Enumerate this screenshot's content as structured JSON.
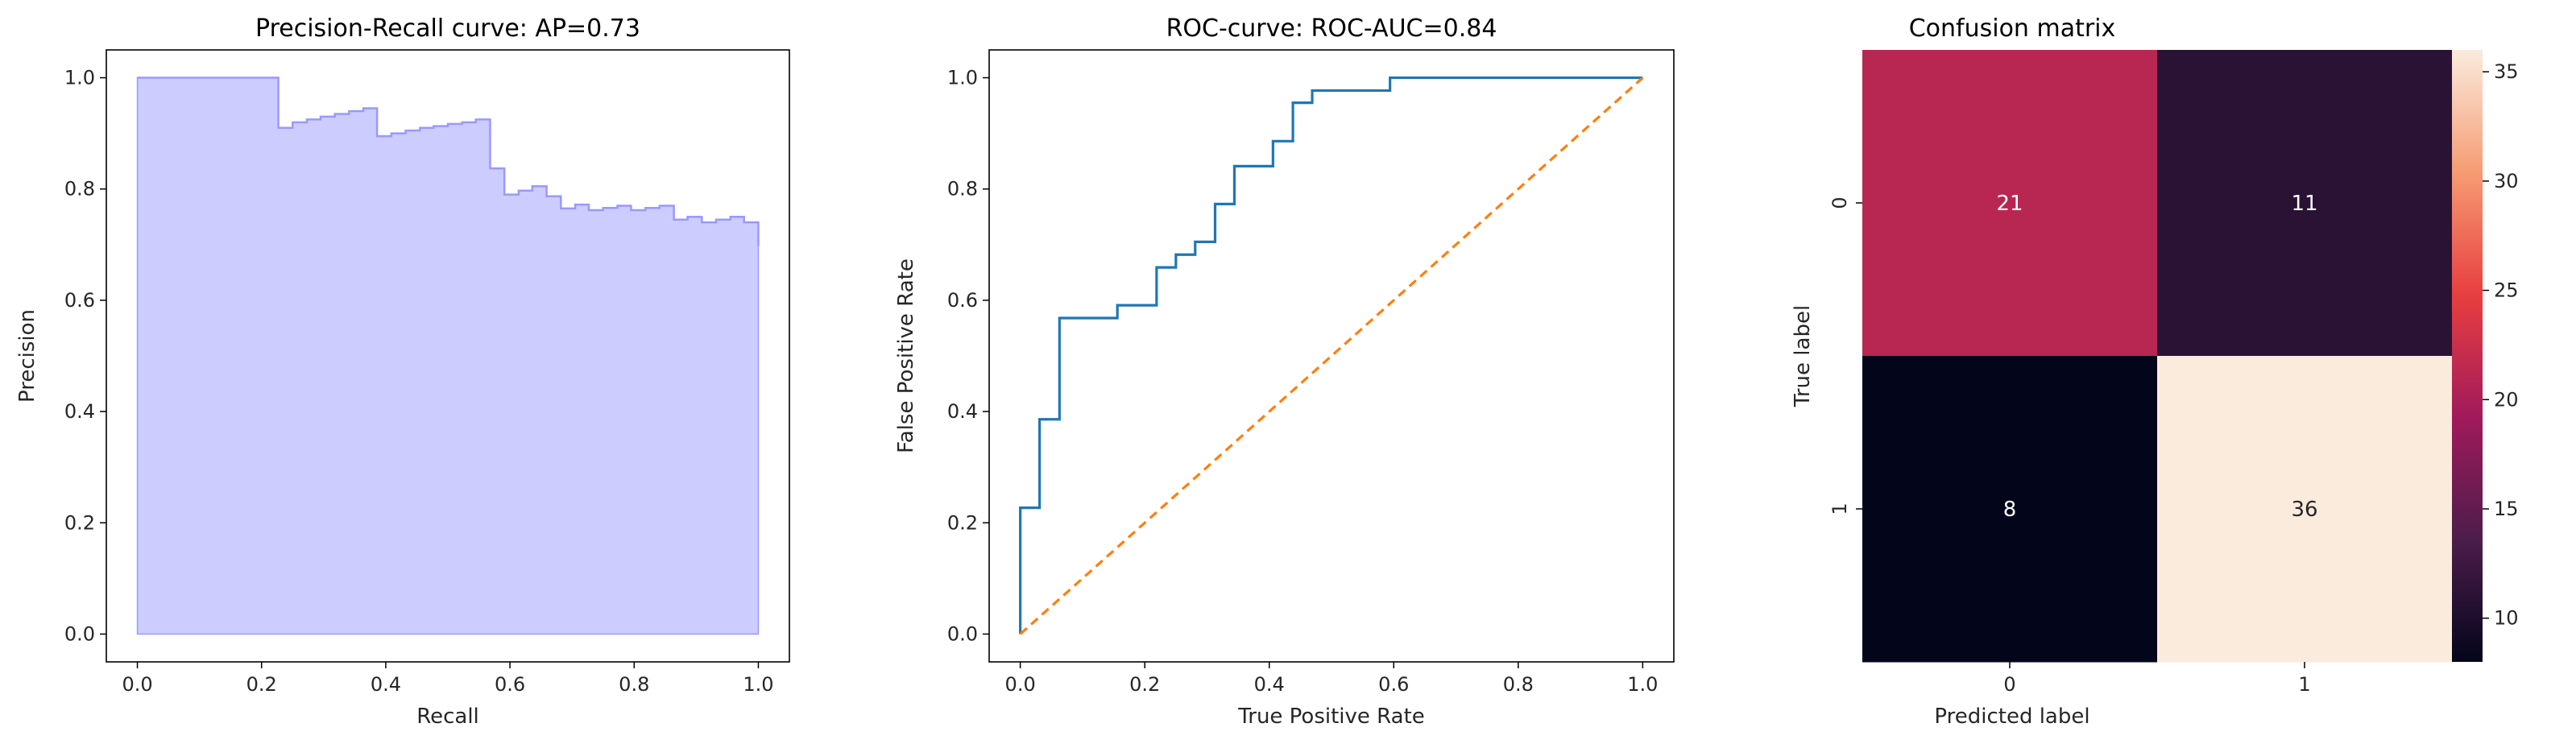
{
  "chart_data": [
    {
      "type": "area",
      "title": "Precision-Recall curve: AP=0.73",
      "xlabel": "Recall",
      "ylabel": "Precision",
      "xlim": [
        -0.05,
        1.05
      ],
      "ylim": [
        -0.05,
        1.05
      ],
      "xticks": [
        0.0,
        0.2,
        0.4,
        0.6,
        0.8,
        1.0
      ],
      "yticks": [
        0.0,
        0.2,
        0.4,
        0.6,
        0.8,
        1.0
      ],
      "tick_labels_x": [
        "0.0",
        "0.2",
        "0.4",
        "0.6",
        "0.8",
        "1.0"
      ],
      "tick_labels_y": [
        "0.0",
        "0.2",
        "0.4",
        "0.6",
        "0.8",
        "1.0"
      ],
      "step": "post",
      "fill_color": "#ccccff",
      "line_color": "#9999ff",
      "x": [
        0.0,
        0.227,
        0.25,
        0.273,
        0.295,
        0.318,
        0.341,
        0.364,
        0.386,
        0.409,
        0.432,
        0.455,
        0.477,
        0.5,
        0.523,
        0.545,
        0.568,
        0.591,
        0.614,
        0.636,
        0.659,
        0.682,
        0.705,
        0.727,
        0.75,
        0.773,
        0.795,
        0.818,
        0.841,
        0.864,
        0.886,
        0.909,
        0.932,
        0.955,
        0.977,
        1.0
      ],
      "y": [
        1.0,
        0.91,
        0.92,
        0.925,
        0.93,
        0.935,
        0.94,
        0.945,
        0.895,
        0.9,
        0.905,
        0.91,
        0.913,
        0.917,
        0.92,
        0.925,
        0.837,
        0.79,
        0.797,
        0.805,
        0.787,
        0.765,
        0.772,
        0.762,
        0.766,
        0.77,
        0.762,
        0.766,
        0.77,
        0.745,
        0.75,
        0.74,
        0.745,
        0.75,
        0.74,
        0.698
      ]
    },
    {
      "type": "line",
      "title": "ROC-curve: ROC-AUC=0.84",
      "xlabel": "True Positive Rate",
      "ylabel": "False Positive Rate",
      "xlim": [
        -0.05,
        1.05
      ],
      "ylim": [
        -0.05,
        1.05
      ],
      "xticks": [
        0.0,
        0.2,
        0.4,
        0.6,
        0.8,
        1.0
      ],
      "yticks": [
        0.0,
        0.2,
        0.4,
        0.6,
        0.8,
        1.0
      ],
      "tick_labels_x": [
        "0.0",
        "0.2",
        "0.4",
        "0.6",
        "0.8",
        "1.0"
      ],
      "tick_labels_y": [
        "0.0",
        "0.2",
        "0.4",
        "0.6",
        "0.8",
        "1.0"
      ],
      "series": [
        {
          "color": "#1f77b4",
          "style": "solid",
          "x": [
            0.0,
            0.0,
            0.031,
            0.031,
            0.063,
            0.063,
            0.156,
            0.156,
            0.219,
            0.219,
            0.25,
            0.25,
            0.281,
            0.281,
            0.313,
            0.313,
            0.344,
            0.344,
            0.406,
            0.406,
            0.438,
            0.438,
            0.469,
            0.469,
            0.594,
            0.594,
            1.0
          ],
          "y": [
            0.0,
            0.227,
            0.227,
            0.386,
            0.386,
            0.568,
            0.568,
            0.591,
            0.591,
            0.659,
            0.659,
            0.682,
            0.682,
            0.705,
            0.705,
            0.773,
            0.773,
            0.841,
            0.841,
            0.886,
            0.886,
            0.955,
            0.955,
            0.977,
            0.977,
            1.0,
            1.0
          ]
        },
        {
          "color": "#ff7f0e",
          "style": "dashed",
          "x": [
            0.0,
            1.0
          ],
          "y": [
            0.0,
            1.0
          ]
        }
      ]
    },
    {
      "type": "heatmap",
      "title": "Confusion matrix",
      "xlabel": "Predicted label",
      "ylabel": "True label",
      "x_categories": [
        "0",
        "1"
      ],
      "y_categories": [
        "0",
        "1"
      ],
      "values": [
        [
          21,
          11
        ],
        [
          8,
          36
        ]
      ],
      "cell_labels": [
        [
          "21",
          "11"
        ],
        [
          "8",
          "36"
        ]
      ],
      "colorscale": "rocket",
      "vmin": 8,
      "vmax": 36,
      "colorbar_ticks": [
        10,
        15,
        20,
        25,
        30,
        35
      ],
      "colorbar_tick_labels": [
        "10",
        "15",
        "20",
        "25",
        "30",
        "35"
      ]
    }
  ]
}
